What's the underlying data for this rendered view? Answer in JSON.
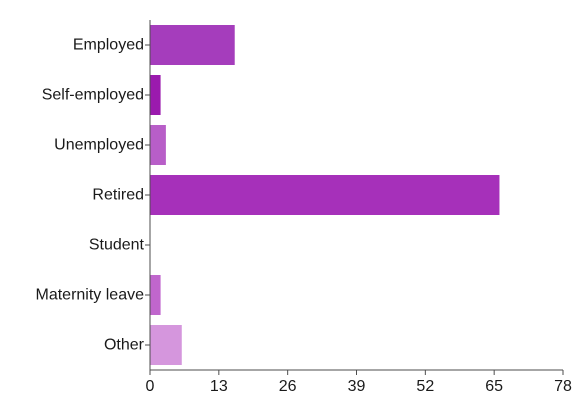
{
  "chart_data": {
    "type": "bar",
    "orientation": "horizontal",
    "title": "",
    "xlabel": "",
    "ylabel": "",
    "categories": [
      "Employed",
      "Self-employed",
      "Unemployed",
      "Retired",
      "Student",
      "Maternity leave",
      "Other"
    ],
    "values": [
      16,
      2,
      3,
      66,
      0,
      2,
      6
    ],
    "colors": [
      "#a53dbc",
      "#9b1aae",
      "#b85ec8",
      "#a630ba",
      "#c98ad6",
      "#c066cd",
      "#d596dd"
    ],
    "xlim": [
      0,
      78
    ],
    "ticks": [
      "0",
      "13",
      "26",
      "39",
      "52",
      "65",
      "78"
    ],
    "grid": false,
    "legend": "none"
  }
}
